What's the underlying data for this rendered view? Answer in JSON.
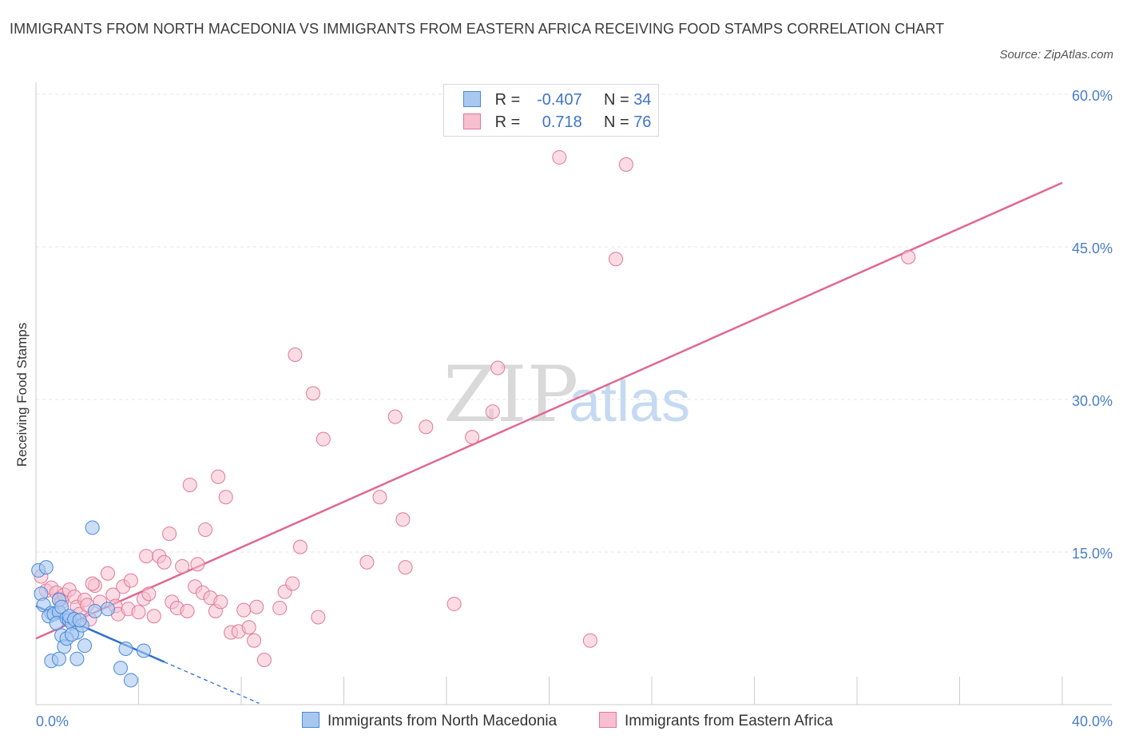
{
  "title": "IMMIGRANTS FROM NORTH MACEDONIA VS IMMIGRANTS FROM EASTERN AFRICA RECEIVING FOOD STAMPS CORRELATION CHART",
  "source": "Source: ZipAtlas.com",
  "watermark": {
    "zip": "ZIP",
    "atlas": "atlas"
  },
  "legend": {
    "r_label": "R =",
    "n_label": "N =",
    "series1": {
      "r": "-0.407",
      "n": "34"
    },
    "series2": {
      "r": "0.718",
      "n": "76"
    }
  },
  "colors": {
    "blue_fill": "#a9c8f0",
    "blue_stroke": "#4a88d8",
    "blue_line": "#2f6fd0",
    "pink_fill": "#f7bfd0",
    "pink_stroke": "#e07898",
    "pink_line": "#e06890",
    "tick": "#4a7fc8",
    "grid": "#e6e6e6"
  },
  "chart_data": {
    "type": "scatter",
    "title": "IMMIGRANTS FROM NORTH MACEDONIA VS IMMIGRANTS FROM EASTERN AFRICA RECEIVING FOOD STAMPS CORRELATION CHART",
    "xlabel": "",
    "ylabel": "Receiving Food Stamps",
    "xlim": [
      0,
      40
    ],
    "ylim": [
      0,
      60
    ],
    "x_tick_labels": [
      "0.0%",
      "40.0%"
    ],
    "y_ticks": [
      15,
      30,
      45,
      60
    ],
    "y_tick_labels": [
      "15.0%",
      "30.0%",
      "45.0%",
      "60.0%"
    ],
    "series": [
      {
        "name": "Immigrants from North Macedonia",
        "r": -0.407,
        "n": 34,
        "trend": {
          "x0": 0,
          "y0": 9.7,
          "x1": 5,
          "y1": 4.2,
          "dash_to_x": 8.7
        },
        "points": [
          [
            0.1,
            13.2
          ],
          [
            0.4,
            13.5
          ],
          [
            0.2,
            10.9
          ],
          [
            0.3,
            9.8
          ],
          [
            0.6,
            9.0
          ],
          [
            0.5,
            8.7
          ],
          [
            0.7,
            8.9
          ],
          [
            0.9,
            9.1
          ],
          [
            0.8,
            8.0
          ],
          [
            0.9,
            10.3
          ],
          [
            1.0,
            9.6
          ],
          [
            1.2,
            8.5
          ],
          [
            1.3,
            8.3
          ],
          [
            1.4,
            8.0
          ],
          [
            1.3,
            8.7
          ],
          [
            1.5,
            8.4
          ],
          [
            1.6,
            7.1
          ],
          [
            1.0,
            6.8
          ],
          [
            1.1,
            5.7
          ],
          [
            1.2,
            6.5
          ],
          [
            1.4,
            6.9
          ],
          [
            1.9,
            5.8
          ],
          [
            1.8,
            7.8
          ],
          [
            1.6,
            4.5
          ],
          [
            0.6,
            4.3
          ],
          [
            0.9,
            4.5
          ],
          [
            2.3,
            9.2
          ],
          [
            2.8,
            9.4
          ],
          [
            2.2,
            17.4
          ],
          [
            3.5,
            5.5
          ],
          [
            4.2,
            5.3
          ],
          [
            3.3,
            3.6
          ],
          [
            3.7,
            2.4
          ],
          [
            1.7,
            8.3
          ]
        ]
      },
      {
        "name": "Immigrants from Eastern Africa",
        "r": 0.718,
        "n": 76,
        "trend": {
          "x0": 0,
          "y0": 6.5,
          "x1": 40,
          "y1": 51.3
        },
        "points": [
          [
            0.2,
            12.6
          ],
          [
            0.4,
            11.2
          ],
          [
            0.6,
            11.5
          ],
          [
            0.8,
            11.0
          ],
          [
            0.9,
            10.4
          ],
          [
            1.0,
            10.1
          ],
          [
            1.1,
            10.8
          ],
          [
            1.3,
            11.3
          ],
          [
            1.5,
            10.6
          ],
          [
            1.6,
            9.6
          ],
          [
            1.7,
            8.9
          ],
          [
            1.9,
            10.3
          ],
          [
            2.0,
            9.8
          ],
          [
            2.1,
            8.4
          ],
          [
            2.3,
            11.7
          ],
          [
            2.5,
            10.1
          ],
          [
            2.8,
            12.9
          ],
          [
            3.0,
            10.8
          ],
          [
            3.1,
            9.7
          ],
          [
            3.2,
            8.9
          ],
          [
            3.4,
            11.6
          ],
          [
            3.6,
            9.4
          ],
          [
            3.7,
            12.2
          ],
          [
            4.0,
            9.1
          ],
          [
            4.2,
            10.4
          ],
          [
            4.4,
            10.9
          ],
          [
            4.6,
            8.7
          ],
          [
            4.3,
            14.6
          ],
          [
            4.8,
            14.6
          ],
          [
            5.0,
            14.0
          ],
          [
            5.3,
            10.1
          ],
          [
            5.2,
            16.8
          ],
          [
            5.5,
            9.5
          ],
          [
            5.7,
            13.6
          ],
          [
            5.9,
            9.2
          ],
          [
            6.2,
            11.6
          ],
          [
            6.5,
            11.0
          ],
          [
            6.8,
            10.5
          ],
          [
            7.0,
            9.2
          ],
          [
            7.2,
            10.1
          ],
          [
            6.0,
            21.6
          ],
          [
            6.6,
            17.2
          ],
          [
            7.1,
            22.4
          ],
          [
            7.4,
            20.4
          ],
          [
            7.6,
            7.1
          ],
          [
            7.9,
            7.2
          ],
          [
            8.1,
            9.3
          ],
          [
            8.3,
            7.6
          ],
          [
            8.5,
            6.3
          ],
          [
            8.6,
            9.6
          ],
          [
            8.9,
            4.4
          ],
          [
            9.5,
            9.5
          ],
          [
            9.7,
            11.1
          ],
          [
            10.0,
            11.9
          ],
          [
            10.3,
            15.5
          ],
          [
            10.1,
            34.4
          ],
          [
            10.8,
            30.6
          ],
          [
            11.0,
            8.6
          ],
          [
            11.2,
            26.1
          ],
          [
            12.9,
            14.0
          ],
          [
            13.4,
            20.4
          ],
          [
            14.0,
            28.3
          ],
          [
            14.3,
            18.2
          ],
          [
            14.4,
            13.5
          ],
          [
            15.2,
            27.3
          ],
          [
            16.3,
            9.9
          ],
          [
            17.0,
            26.3
          ],
          [
            17.8,
            28.8
          ],
          [
            18.0,
            33.1
          ],
          [
            20.4,
            53.8
          ],
          [
            21.6,
            6.3
          ],
          [
            22.6,
            43.8
          ],
          [
            23.0,
            53.1
          ],
          [
            6.3,
            13.8
          ],
          [
            34.0,
            44.0
          ],
          [
            2.2,
            11.9
          ]
        ]
      }
    ]
  },
  "bottom_legend": {
    "series1": "Immigrants from North Macedonia",
    "series2": "Immigrants from Eastern Africa"
  }
}
